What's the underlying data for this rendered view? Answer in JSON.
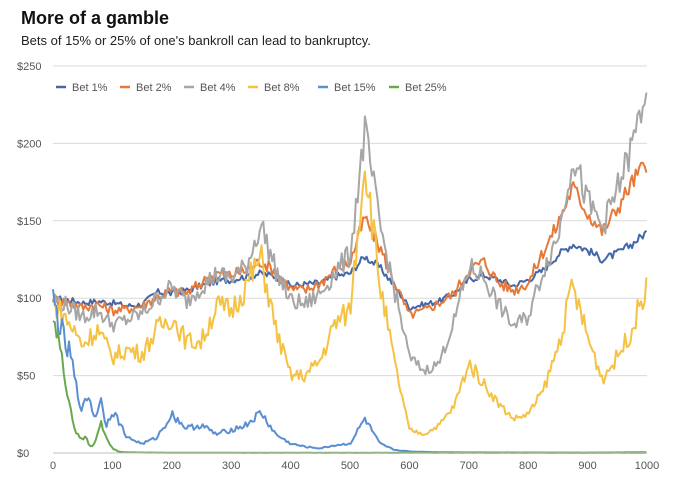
{
  "header": {
    "title": "More of a gamble",
    "subtitle": "Bets of 15% or 25% of one's bankroll can lead to bankruptcy."
  },
  "chart_data": {
    "type": "line",
    "title": "More of a gamble",
    "subtitle": "Bets of 15% or 25% of one's bankroll can lead to bankruptcy.",
    "xlabel": "",
    "ylabel": "",
    "xlim": [
      0,
      1000
    ],
    "ylim": [
      0,
      250
    ],
    "xticks": [
      0,
      100,
      200,
      300,
      400,
      500,
      600,
      700,
      800,
      900,
      1000
    ],
    "yticks": [
      0,
      50,
      100,
      150,
      200,
      250
    ],
    "ytick_labels": [
      "$0",
      "$50",
      "$100",
      "$150",
      "$200",
      "$250"
    ],
    "grid": "horizontal",
    "legend_position": "top-left",
    "series": [
      {
        "name": "Bet 1%",
        "color": "#4367a7",
        "x": [
          0,
          25,
          50,
          75,
          100,
          125,
          150,
          175,
          200,
          225,
          250,
          275,
          300,
          325,
          350,
          375,
          400,
          425,
          450,
          475,
          500,
          525,
          550,
          575,
          600,
          625,
          650,
          675,
          700,
          725,
          750,
          775,
          800,
          825,
          850,
          875,
          900,
          925,
          950,
          975,
          1000
        ],
        "values": [
          100,
          99,
          97,
          98,
          97,
          95,
          96,
          104,
          103,
          105,
          108,
          111,
          112,
          114,
          116,
          114,
          108,
          109,
          110,
          114,
          116,
          127,
          120,
          108,
          94,
          96,
          98,
          103,
          112,
          115,
          112,
          108,
          112,
          118,
          128,
          135,
          131,
          125,
          129,
          135,
          143
        ]
      },
      {
        "name": "Bet 2%",
        "color": "#e6793a",
        "x": [
          0,
          25,
          50,
          75,
          100,
          125,
          150,
          175,
          200,
          225,
          250,
          275,
          300,
          325,
          350,
          375,
          400,
          425,
          450,
          475,
          500,
          525,
          550,
          575,
          600,
          625,
          650,
          675,
          700,
          725,
          750,
          775,
          800,
          825,
          850,
          875,
          900,
          925,
          950,
          975,
          1000
        ],
        "values": [
          100,
          97,
          94,
          96,
          92,
          93,
          95,
          101,
          105,
          103,
          110,
          116,
          115,
          118,
          124,
          117,
          106,
          105,
          110,
          118,
          123,
          152,
          133,
          110,
          89,
          92,
          97,
          103,
          118,
          124,
          110,
          105,
          110,
          130,
          148,
          172,
          155,
          143,
          158,
          175,
          188
        ]
      },
      {
        "name": "Bet 4%",
        "color": "#a6a6a6",
        "x": [
          0,
          25,
          50,
          75,
          100,
          125,
          150,
          175,
          200,
          225,
          250,
          275,
          300,
          325,
          350,
          375,
          400,
          425,
          450,
          475,
          500,
          525,
          550,
          575,
          600,
          625,
          650,
          675,
          700,
          725,
          750,
          775,
          800,
          825,
          850,
          875,
          900,
          925,
          950,
          975,
          1000
        ],
        "values": [
          100,
          95,
          88,
          92,
          83,
          86,
          90,
          100,
          107,
          98,
          108,
          115,
          113,
          120,
          148,
          118,
          98,
          96,
          103,
          117,
          128,
          208,
          148,
          105,
          62,
          53,
          58,
          85,
          120,
          114,
          96,
          82,
          88,
          118,
          140,
          192,
          162,
          146,
          170,
          198,
          238
        ]
      },
      {
        "name": "Bet 8%",
        "color": "#f5c243",
        "x": [
          0,
          25,
          50,
          75,
          100,
          125,
          150,
          175,
          200,
          225,
          250,
          275,
          300,
          325,
          350,
          375,
          400,
          425,
          450,
          475,
          500,
          525,
          550,
          575,
          600,
          625,
          650,
          675,
          700,
          725,
          750,
          775,
          800,
          825,
          850,
          875,
          900,
          925,
          950,
          975,
          1000
        ],
        "values": [
          98,
          85,
          70,
          80,
          62,
          67,
          64,
          80,
          88,
          72,
          72,
          95,
          92,
          108,
          126,
          80,
          50,
          50,
          60,
          84,
          92,
          190,
          110,
          58,
          15,
          12,
          18,
          30,
          58,
          45,
          32,
          22,
          25,
          40,
          68,
          108,
          75,
          48,
          62,
          80,
          110
        ]
      },
      {
        "name": "Bet 15%",
        "color": "#5b8fd1",
        "x": [
          0,
          10,
          20,
          30,
          40,
          50,
          60,
          70,
          80,
          90,
          100,
          125,
          150,
          175,
          200,
          225,
          250,
          275,
          300,
          325,
          350,
          375,
          400,
          425,
          450,
          475,
          500,
          525,
          550,
          575,
          600,
          650,
          700,
          800,
          900,
          1000
        ],
        "values": [
          98,
          85,
          70,
          62,
          40,
          28,
          38,
          22,
          35,
          18,
          28,
          10,
          6,
          10,
          25,
          16,
          18,
          12,
          15,
          18,
          26,
          12,
          6,
          4,
          3,
          5,
          6,
          22,
          6,
          2,
          1,
          0.5,
          0.4,
          0.3,
          0.2,
          0.5
        ]
      },
      {
        "name": "Bet 25%",
        "color": "#6aa84f",
        "x": [
          0,
          5,
          10,
          15,
          20,
          25,
          30,
          35,
          40,
          45,
          50,
          55,
          60,
          65,
          70,
          75,
          80,
          85,
          90,
          95,
          100,
          110,
          120,
          150,
          200,
          300,
          500,
          700,
          1000
        ],
        "values": [
          95,
          78,
          72,
          58,
          50,
          38,
          28,
          18,
          12,
          10,
          8,
          12,
          6,
          4,
          6,
          12,
          20,
          15,
          10,
          6,
          3,
          1,
          0.5,
          0.3,
          0.2,
          0.1,
          0.1,
          0.1,
          0.1
        ]
      }
    ]
  }
}
